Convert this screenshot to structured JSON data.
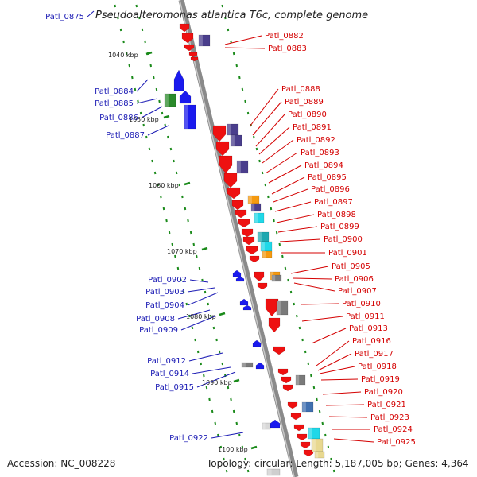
{
  "title": "Pseudoalteromonas atlantica T6c, complete genome",
  "accession": "Accession: NC_008228",
  "topology": "Topology: circular; Length: 5,187,005 bp; Genes: 4,364",
  "colors": {
    "forward_label": "#1a1ab4",
    "reverse_label": "#d40000",
    "backbone": "#8a8a8a",
    "tick_green": "#1a8a1a",
    "gene_red": "#ee1111",
    "gene_blue": "#1a1aee",
    "gene_green": "#2a8a2a",
    "gene_purple": "#4a3e8c",
    "gene_cyan": "#20d8e8",
    "gene_teal": "#1fa8b0",
    "gene_orange": "#f59a10",
    "gene_gray": "#7a7a7a",
    "gene_steelblue": "#4070b0",
    "gene_yellow": "#e8d890"
  },
  "scale": [
    "1040 kbp",
    "1050 kbp",
    "1060 kbp",
    "1070 kbp",
    "1080 kbp",
    "1090 kbp",
    "1100 kbp"
  ],
  "top_label": "Patl_0875",
  "left_labels": [
    "Patl_0884",
    "Patl_0885",
    "Patl_0886",
    "Patl_0887",
    "Patl_0902",
    "Patl_0903",
    "Patl_0904",
    "Patl_0908",
    "Patl_0909",
    "Patl_0912",
    "Patl_0914",
    "Patl_0915",
    "Patl_0922"
  ],
  "right_labels": [
    "Patl_0882",
    "Patl_0883",
    "Patl_0888",
    "Patl_0889",
    "Patl_0890",
    "Patl_0891",
    "Patl_0892",
    "Patl_0893",
    "Patl_0894",
    "Patl_0895",
    "Patl_0896",
    "Patl_0897",
    "Patl_0898",
    "Patl_0899",
    "Patl_0900",
    "Patl_0901",
    "Patl_0905",
    "Patl_0906",
    "Patl_0907",
    "Patl_0910",
    "Patl_0911",
    "Patl_0913",
    "Patl_0916",
    "Patl_0917",
    "Patl_0918",
    "Patl_0919",
    "Patl_0920",
    "Patl_0921",
    "Patl_0923",
    "Patl_0924",
    "Patl_0925"
  ]
}
